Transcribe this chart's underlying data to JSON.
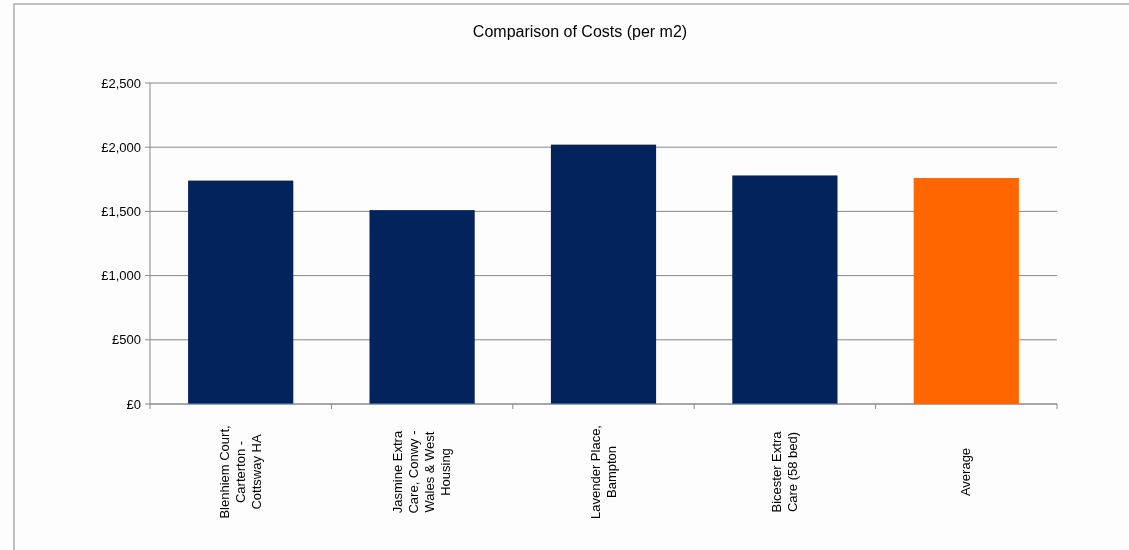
{
  "chart_data": {
    "type": "bar",
    "title": "Comparison of Costs (per m2)",
    "categories": [
      "Blenhiem Court, Carterton - Cottsway HA",
      "Jasmine Extra Care, Conwy - Wales & West Housing",
      "Lavender Place, Bampton",
      "Bicester Extra Care (58 bed)",
      "Average"
    ],
    "values": [
      1740,
      1510,
      2020,
      1780,
      1760
    ],
    "colors": [
      "#02235c",
      "#02235c",
      "#02235c",
      "#02235c",
      "#ff6600"
    ],
    "ylim": [
      0,
      2500
    ],
    "yticks": [
      {
        "value": 0,
        "label": "£0"
      },
      {
        "value": 500,
        "label": "£500"
      },
      {
        "value": 1000,
        "label": "£1,000"
      },
      {
        "value": 1500,
        "label": "£1,500"
      },
      {
        "value": 2000,
        "label": "£2,000"
      },
      {
        "value": 2500,
        "label": "£2,500"
      }
    ],
    "grid": "y"
  }
}
